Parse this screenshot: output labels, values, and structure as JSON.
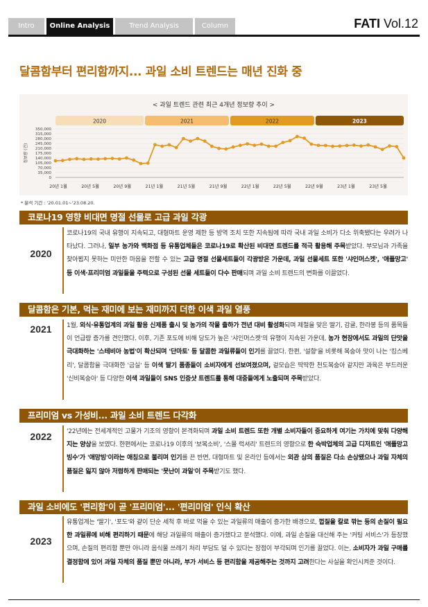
{
  "nav": {
    "tabs": [
      "Intro",
      "Online Analysis",
      "Trend Analysis",
      "Column"
    ],
    "active_tab": "Online Analysis",
    "brand_bold": "FATI",
    "brand_rest": " Vol.12"
  },
  "headline": "달콤함부터 편리함까지... 과일 소비 트렌드는 매년 진화 중",
  "chart_data": {
    "type": "line",
    "title": "< 과일 트렌드 관련 최근 4개년 정보량 추이 >",
    "ylabel": "정보량 (건)",
    "ylim": [
      0,
      350000
    ],
    "yticks": [
      "0",
      "35,000",
      "70,000",
      "105,000",
      "140,000",
      "175,000",
      "210,000",
      "245,000",
      "280,000",
      "315,000",
      "350,000"
    ],
    "xticks": [
      "20년 1월",
      "20년 5월",
      "20년 9월",
      "21년 1월",
      "21년 5월",
      "21년 9월",
      "22년 1월",
      "22년 5월",
      "22년 9월",
      "23년 1월",
      "23년 5월"
    ],
    "periods": [
      "2020",
      "2021",
      "2022",
      "2023"
    ],
    "period_colors": [
      "#f7ddb8",
      "#f5bd6d",
      "#e39a22",
      "#8f5608"
    ],
    "series": [
      {
        "color": "#e39a22",
        "values": [
          120000,
          122000,
          130000,
          135000,
          130000,
          133000,
          132000,
          135000,
          137000,
          133000,
          140000,
          125000,
          100000,
          103000,
          236000,
          225000,
          235000,
          215000,
          280000,
          262000,
          280000,
          262000,
          225000,
          209000,
          205000,
          219000,
          231000,
          242000,
          231000,
          240000,
          225000,
          225000,
          252000,
          265000,
          295000,
          283000,
          240000,
          231000,
          230000,
          224000,
          226000,
          230000,
          233000,
          226000,
          234000,
          220000,
          202000,
          227000,
          222000,
          140000
        ]
      }
    ],
    "note": "* 분석 기간 : '20.01.01~'23.08.20."
  },
  "sections": [
    {
      "title": "코로나19 영향 비대면 명절 선물로 고급 과일 각광",
      "year": "2020",
      "paragraph": [
        {
          "t": " 코로나19의 국내 유행이 지속되고, 대형마트 운영 제한 등 방역 조치 또한 지속됨에 따라 국내 과일 소비가 다소 위축됐다는 우려가 나타났다. 그러나, "
        },
        {
          "b": "일부 농가와 백화점 등 유통업체들은 코로나19로 확산된 비대면 트렌드를 적극 활용해 주목"
        },
        {
          "t": "받았다. 부모님과 가족을 찾아뵙지 못하는 미안한 마음을 전할 수 있는 "
        },
        {
          "b": "고급 명절 선물세트들이 각광받은 가운데, 과일 선물세트 또한 '샤인머스켓', '애플망고' 등 이색·프리미엄 과일들을 주력으로 구성된 선물 세트들이 다수 판매"
        },
        {
          "t": "되며 과일 소비 트렌드의 변화를 이끌었다."
        }
      ]
    },
    {
      "title": "달콤함은 기본, 먹는 재미에 보는 재미까지 더한 이색 과일 열풍",
      "year": "2021",
      "paragraph": [
        {
          "t": " 1월, "
        },
        {
          "b": "외식·유통업계의 과일 활용 신제품 출시 및 농가의 작물 출하가 전년 대비 활성화"
        },
        {
          "t": "되며 제철을 맞은 딸기, 감귤, 한라봉 등의 품목들이 언급량 증가를 견인했다. 이후, 기존 포도에 비해 당도가 높은 '샤인머스켓'의 유행이 지속된 가운데, "
        },
        {
          "b": "농가 현장에서도 과일의 단맛을 극대화하는 '스테비아 농법'이 확산되며 '단마토' 등 달콤한 과일류들이 인기"
        },
        {
          "t": "를 끌었다. 한편, '설향'을 비롯해 복숭아 맛이 나는 '킹스베리', 달콤함을 극대화한 '금실' 등 "
        },
        {
          "b": "이색 딸기 품종들이 소비자에게 선보여졌으며,"
        },
        {
          "t": " 겉모습은 딱딱한 천도복숭아 같지만 과육은 부드러운 '신비복숭아' 등 다양한 "
        },
        {
          "b": "이색 과일들이 SNS 인증샷 트렌드를 통해 대중들에게 노출되며 주목"
        },
        {
          "t": "받았다."
        }
      ]
    },
    {
      "title": "프리미엄 vs 가성비... 과일 소비 트렌드 다각화",
      "year": "2022",
      "paragraph": [
        {
          "t": " '22년에는 전세계적인 고물가 기조의 영향이 본격화되며 "
        },
        {
          "b": "과일 소비 트렌드 또한 개별 소비자들이 중요하게 여기는 가치에 맞춰 다양해지는 양상"
        },
        {
          "t": "을 보였다. 한편에서는 코로나19 이후의 '보복소비', '스몰 럭셔리' 트렌드의 영향으로 "
        },
        {
          "b": "한 숙박업체의 고급 디저트인 '애플망고빙수'가 '애망빙'이라는 애칭으로 불리며 인기"
        },
        {
          "t": "를 끈 반면, 대형마트 및 온라인 등에서는 "
        },
        {
          "b": "외관 상의 품질은 다소 손상됐으나 과일 자체의 품질은 잃지 않아 저렴하게 판매되는 '못난이 과일'이 주목"
        },
        {
          "t": "받기도 했다."
        }
      ]
    },
    {
      "title": "과일 소비에도 '편리함'이 곧 '프리미엄'... '편리미엄' 인식 확산",
      "year": "2023",
      "paragraph": [
        {
          "t": " 유통업계는 '딸기', '포도'와 같이 단순 세척 후 바로 먹을 수 있는 과일류의 매출이 증가한 배경으로, "
        },
        {
          "b": "껍질을 칼로 깎는 등의 손질이 필요한 과일류에 비해 편리하기 때문"
        },
        {
          "t": "에 해당 과일류의 매출이 증가했다고 분석했다. 이에, 과일 손질을 대신해 주는 '커팅 서비스'가 등장했으며, 손질의 편리함 뿐만 아니라 음식물 쓰레기 처리 부담도 덜 수 있다는 장점이 부각되며 인기를 끌었다. 이는, "
        },
        {
          "b": "소비자가 과일 구매를 결정함에 있어 과일 자체의 품질 뿐만 아니라, 부가 서비스 등 편리함을 제공해주는 것까지 고려"
        },
        {
          "t": "한다는 사실을 확인시켜준 것이다."
        }
      ]
    }
  ]
}
